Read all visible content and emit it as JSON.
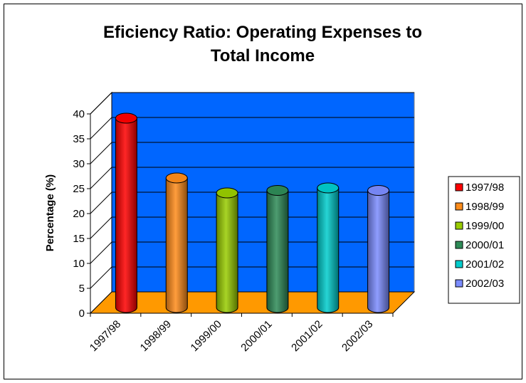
{
  "chart_data": {
    "type": "bar",
    "title": "Eficiency Ratio: Operating Expenses to Total Income",
    "title_lines": [
      "Eficiency Ratio: Operating Expenses to",
      "Total Income"
    ],
    "ylabel": "Percentage (%)",
    "xlabel": "",
    "ylim": [
      0,
      40
    ],
    "yticks": [
      "0",
      "5",
      "10",
      "15",
      "20",
      "25",
      "30",
      "35",
      "40"
    ],
    "grid": true,
    "legend_position": "right",
    "categories": [
      "1997/98",
      "1998/99",
      "1999/00",
      "2000/01",
      "2001/02",
      "2002/03"
    ],
    "values": [
      38,
      26,
      23,
      23.5,
      24,
      23.5
    ],
    "colors": [
      "#ff0000",
      "#ff8c1a",
      "#99cc00",
      "#2e8b57",
      "#00cccc",
      "#7b8cff"
    ],
    "wall_color": "#0066ff",
    "floor_color": "#ff9900"
  }
}
